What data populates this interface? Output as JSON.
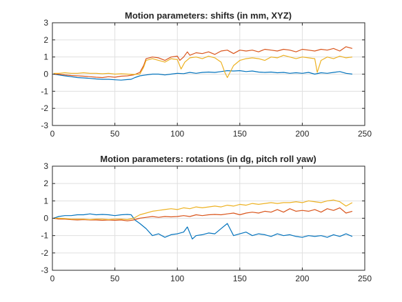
{
  "figure": {
    "background": "#ffffff"
  },
  "chart_data": [
    {
      "type": "line",
      "title": "Motion parameters: shifts (in mm, XYZ)",
      "xlim": [
        0,
        250
      ],
      "ylim": [
        -3,
        3
      ],
      "xticks": [
        0,
        50,
        100,
        150,
        200,
        250
      ],
      "yticks": [
        -3,
        -2,
        -1,
        0,
        1,
        2,
        3
      ],
      "grid": true,
      "series": [
        {
          "color": "#0072BD",
          "x": [
            1,
            5,
            10,
            15,
            20,
            25,
            30,
            35,
            40,
            45,
            50,
            55,
            60,
            63,
            66,
            70,
            75,
            80,
            85,
            90,
            95,
            100,
            105,
            110,
            115,
            120,
            125,
            130,
            135,
            140,
            145,
            150,
            155,
            160,
            165,
            170,
            175,
            180,
            185,
            190,
            195,
            200,
            205,
            210,
            215,
            220,
            225,
            230,
            235,
            240
          ],
          "y": [
            0,
            -0.05,
            -0.1,
            -0.15,
            -0.2,
            -0.22,
            -0.25,
            -0.28,
            -0.3,
            -0.3,
            -0.33,
            -0.35,
            -0.32,
            -0.3,
            -0.2,
            -0.1,
            -0.05,
            0,
            0,
            -0.05,
            0,
            0.05,
            0.03,
            0.1,
            0.05,
            0.1,
            0.12,
            0.1,
            0.15,
            0.2,
            0.18,
            0.2,
            0.15,
            0.18,
            0.12,
            0.1,
            0.12,
            0.08,
            0.1,
            0.05,
            0.08,
            0.05,
            0.1,
            0.0,
            0.08,
            0.05,
            0.1,
            0.15,
            0.05,
            0.0
          ]
        },
        {
          "color": "#D95319",
          "x": [
            1,
            5,
            10,
            15,
            20,
            25,
            30,
            35,
            40,
            45,
            50,
            55,
            60,
            65,
            70,
            73,
            75,
            80,
            85,
            90,
            95,
            100,
            102,
            105,
            108,
            110,
            115,
            120,
            125,
            130,
            135,
            140,
            145,
            150,
            155,
            160,
            165,
            170,
            175,
            180,
            185,
            190,
            195,
            200,
            205,
            210,
            215,
            220,
            225,
            230,
            235,
            240
          ],
          "y": [
            0,
            0,
            -0.05,
            -0.08,
            -0.1,
            -0.12,
            -0.15,
            -0.18,
            -0.2,
            -0.15,
            -0.18,
            -0.12,
            -0.1,
            -0.05,
            0.1,
            0.5,
            0.9,
            1.0,
            0.95,
            0.8,
            1.0,
            1.05,
            0.8,
            1.0,
            1.3,
            1.1,
            1.25,
            1.2,
            1.3,
            1.15,
            1.35,
            1.4,
            1.2,
            1.4,
            1.35,
            1.4,
            1.3,
            1.45,
            1.4,
            1.35,
            1.45,
            1.4,
            1.3,
            1.45,
            1.4,
            1.35,
            1.45,
            1.4,
            1.5,
            1.35,
            1.6,
            1.5
          ]
        },
        {
          "color": "#EDB120",
          "x": [
            1,
            5,
            10,
            15,
            20,
            25,
            30,
            35,
            40,
            45,
            50,
            55,
            60,
            65,
            70,
            73,
            75,
            80,
            85,
            90,
            95,
            100,
            103,
            106,
            110,
            115,
            120,
            125,
            130,
            135,
            138,
            140,
            145,
            150,
            155,
            160,
            165,
            170,
            175,
            180,
            185,
            190,
            195,
            200,
            205,
            210,
            212,
            215,
            220,
            225,
            230,
            235,
            240
          ],
          "y": [
            0.05,
            0.05,
            0.08,
            0.05,
            0.05,
            0.08,
            0.05,
            0.05,
            0.02,
            0.05,
            0.0,
            0.02,
            0.0,
            -0.02,
            0.0,
            0.4,
            0.8,
            0.9,
            0.8,
            0.7,
            0.9,
            0.85,
            0.3,
            0.7,
            0.95,
            1.0,
            0.9,
            1.05,
            0.95,
            0.7,
            0.1,
            -0.2,
            0.5,
            0.8,
            0.9,
            0.95,
            0.9,
            0.8,
            1.0,
            0.95,
            1.1,
            1.0,
            0.9,
            1.0,
            0.95,
            0.9,
            0.1,
            0.8,
            1.0,
            0.9,
            1.05,
            0.95,
            1.0
          ]
        }
      ]
    },
    {
      "type": "line",
      "title": "Motion parameters: rotations (in dg, pitch roll yaw)",
      "xlim": [
        0,
        250
      ],
      "ylim": [
        -3,
        3
      ],
      "xticks": [
        0,
        50,
        100,
        150,
        200,
        250
      ],
      "yticks": [
        -3,
        -2,
        -1,
        0,
        1,
        2,
        3
      ],
      "grid": true,
      "series": [
        {
          "color": "#0072BD",
          "x": [
            1,
            5,
            10,
            15,
            20,
            25,
            30,
            35,
            40,
            45,
            50,
            55,
            60,
            63,
            66,
            70,
            75,
            80,
            85,
            90,
            95,
            100,
            105,
            108,
            112,
            115,
            120,
            125,
            130,
            135,
            140,
            145,
            150,
            155,
            160,
            165,
            170,
            175,
            180,
            185,
            190,
            195,
            200,
            205,
            210,
            215,
            220,
            225,
            230,
            235,
            240
          ],
          "y": [
            0,
            0.1,
            0.15,
            0.15,
            0.2,
            0.2,
            0.25,
            0.2,
            0.22,
            0.2,
            0.15,
            0.2,
            0.22,
            0.2,
            -0.1,
            -0.3,
            -0.6,
            -1.0,
            -0.9,
            -1.1,
            -0.95,
            -0.9,
            -0.8,
            -0.5,
            -1.2,
            -1.0,
            -0.95,
            -0.85,
            -0.9,
            -0.6,
            -0.3,
            -1.0,
            -0.9,
            -0.8,
            -1.0,
            -0.9,
            -0.95,
            -1.05,
            -0.9,
            -1.0,
            -0.95,
            -1.05,
            -1.1,
            -1.0,
            -1.05,
            -1.0,
            -1.1,
            -0.95,
            -1.05,
            -0.9,
            -1.05
          ]
        },
        {
          "color": "#D95319",
          "x": [
            1,
            5,
            10,
            15,
            20,
            25,
            30,
            35,
            40,
            45,
            50,
            55,
            60,
            65,
            70,
            75,
            80,
            85,
            90,
            95,
            100,
            105,
            110,
            115,
            120,
            125,
            130,
            135,
            140,
            145,
            150,
            155,
            160,
            165,
            170,
            175,
            180,
            185,
            190,
            195,
            200,
            205,
            210,
            215,
            220,
            225,
            230,
            235,
            240
          ],
          "y": [
            0,
            -0.05,
            -0.05,
            -0.08,
            -0.1,
            -0.08,
            -0.1,
            -0.1,
            -0.12,
            -0.1,
            -0.12,
            -0.1,
            -0.15,
            -0.1,
            0.0,
            0.05,
            0.1,
            0.05,
            0.1,
            0.08,
            0.1,
            0.15,
            0.1,
            0.2,
            0.15,
            0.2,
            0.22,
            0.2,
            0.25,
            0.3,
            0.2,
            0.3,
            0.35,
            0.3,
            0.4,
            0.35,
            0.5,
            0.35,
            0.55,
            0.4,
            0.45,
            0.4,
            0.5,
            0.35,
            0.55,
            0.45,
            0.6,
            0.3,
            0.4
          ]
        },
        {
          "color": "#EDB120",
          "x": [
            1,
            5,
            10,
            15,
            20,
            25,
            30,
            35,
            40,
            45,
            50,
            55,
            60,
            65,
            70,
            75,
            80,
            85,
            90,
            95,
            100,
            105,
            110,
            115,
            120,
            125,
            130,
            135,
            140,
            145,
            150,
            155,
            160,
            165,
            170,
            175,
            180,
            185,
            190,
            195,
            200,
            205,
            210,
            215,
            220,
            225,
            230,
            235,
            240
          ],
          "y": [
            0,
            0,
            -0.02,
            -0.05,
            -0.05,
            -0.05,
            -0.08,
            -0.05,
            -0.05,
            -0.08,
            -0.05,
            -0.05,
            -0.08,
            0.0,
            0.2,
            0.3,
            0.4,
            0.45,
            0.5,
            0.55,
            0.5,
            0.6,
            0.55,
            0.65,
            0.6,
            0.65,
            0.7,
            0.65,
            0.75,
            0.7,
            0.8,
            0.75,
            0.85,
            0.8,
            0.85,
            0.9,
            0.85,
            0.9,
            0.9,
            0.95,
            0.9,
            1.0,
            0.95,
            0.9,
            1.0,
            1.05,
            0.95,
            0.7,
            0.9
          ]
        }
      ]
    }
  ]
}
